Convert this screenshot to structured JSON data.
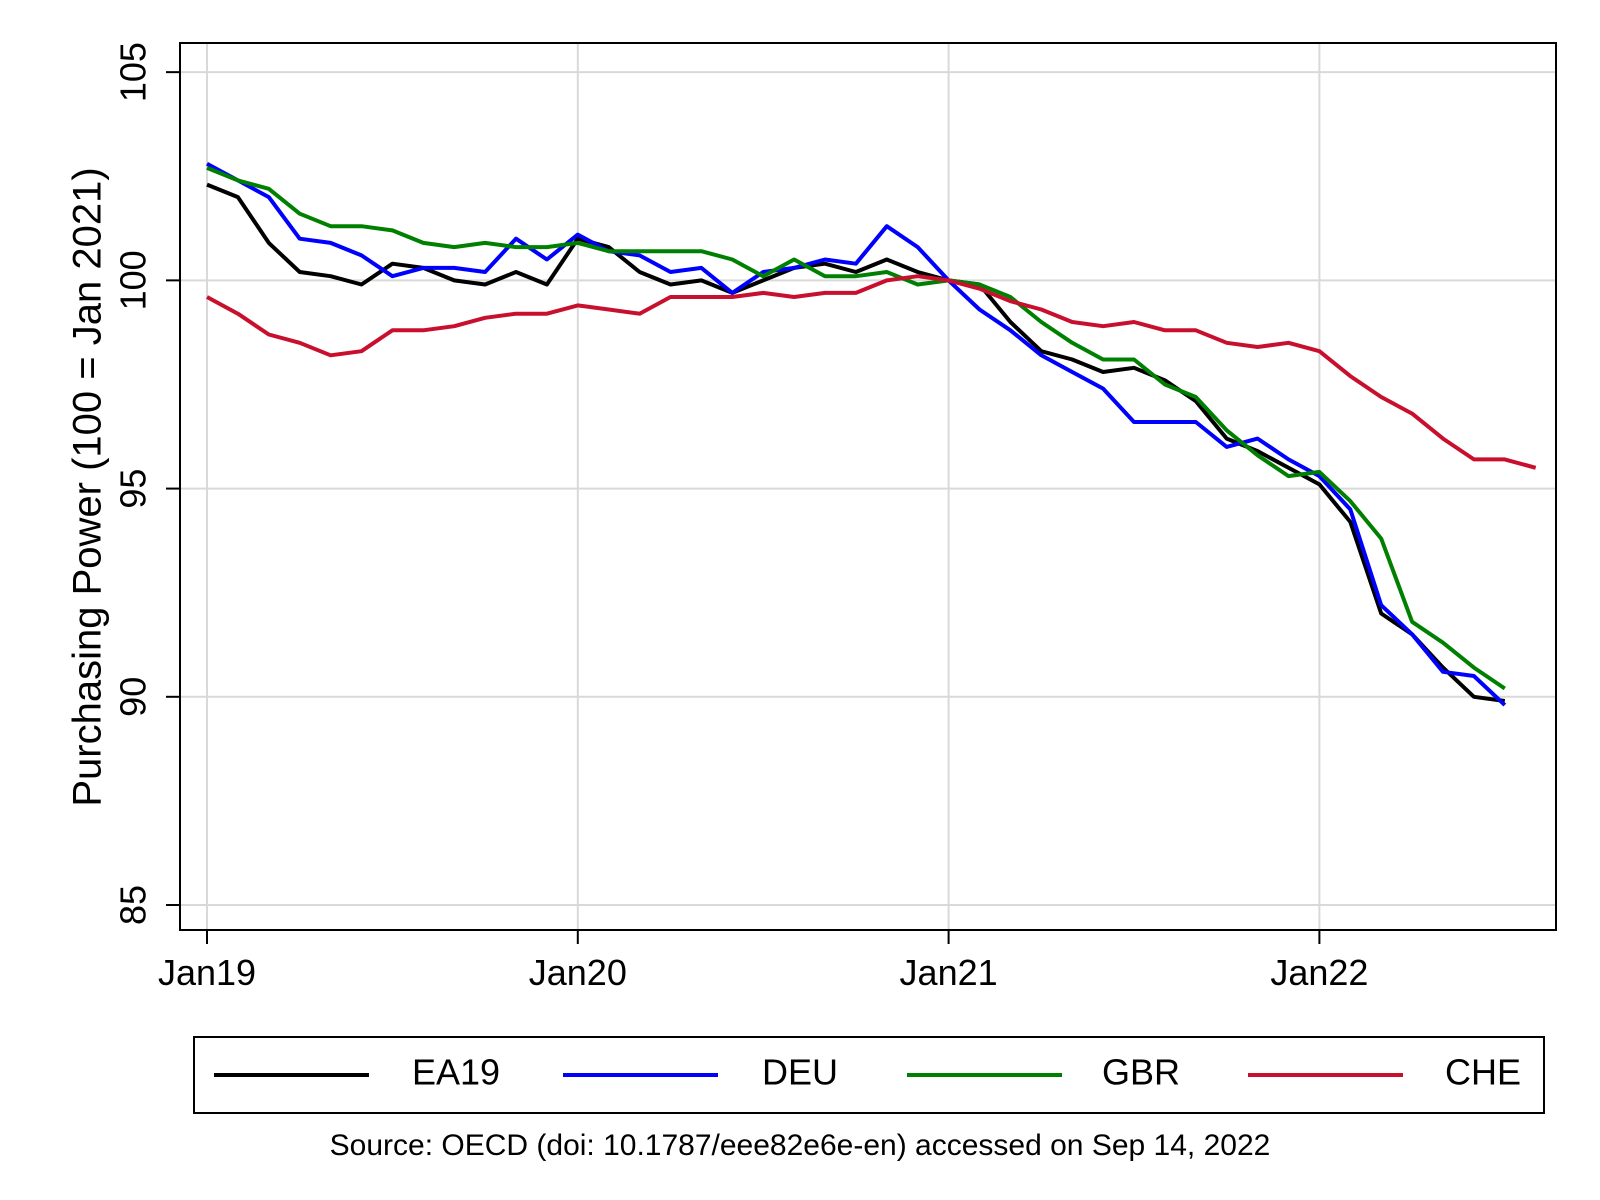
{
  "chart_data": {
    "type": "line",
    "title": "",
    "xlabel": "",
    "ylabel": "Purchasing Power (100 = Jan 2021)",
    "x_start": "Jan19",
    "x_ticks": [
      "Jan19",
      "Jan20",
      "Jan21",
      "Jan22"
    ],
    "y_ticks": [
      "85",
      "90",
      "95",
      "100",
      "105"
    ],
    "ylim": [
      84.4,
      105.7
    ],
    "grid": true,
    "legend_position": "bottom",
    "series": [
      {
        "name": "EA19",
        "color": "#000000",
        "values": [
          102.3,
          102.0,
          100.9,
          100.2,
          100.1,
          99.9,
          100.4,
          100.3,
          100.0,
          99.9,
          100.2,
          99.9,
          101.0,
          100.8,
          100.2,
          99.9,
          100.0,
          99.7,
          100.0,
          100.3,
          100.4,
          100.2,
          100.5,
          100.2,
          100.0,
          99.9,
          99.0,
          98.3,
          98.1,
          97.8,
          97.9,
          97.6,
          97.1,
          96.2,
          95.9,
          95.5,
          95.1,
          94.2,
          92.0,
          91.5,
          90.7,
          90.0,
          89.9
        ],
        "legend_label": "EA19"
      },
      {
        "name": "DEU",
        "color": "#0000ff",
        "values": [
          102.8,
          102.4,
          102.0,
          101.0,
          100.9,
          100.6,
          100.1,
          100.3,
          100.3,
          100.2,
          101.0,
          100.5,
          101.1,
          100.7,
          100.6,
          100.2,
          100.3,
          99.7,
          100.2,
          100.3,
          100.5,
          100.4,
          101.3,
          100.8,
          100.0,
          99.3,
          98.8,
          98.2,
          97.8,
          97.4,
          96.6,
          96.6,
          96.6,
          96.0,
          96.2,
          95.7,
          95.3,
          94.5,
          92.2,
          91.5,
          90.6,
          90.5,
          89.8
        ],
        "legend_label": "DEU"
      },
      {
        "name": "GBR",
        "color": "#008000",
        "values": [
          102.7,
          102.4,
          102.2,
          101.6,
          101.3,
          101.3,
          101.2,
          100.9,
          100.8,
          100.9,
          100.8,
          100.8,
          100.9,
          100.7,
          100.7,
          100.7,
          100.7,
          100.5,
          100.1,
          100.5,
          100.1,
          100.1,
          100.2,
          99.9,
          100.0,
          99.9,
          99.6,
          99.0,
          98.5,
          98.1,
          98.1,
          97.5,
          97.2,
          96.4,
          95.8,
          95.3,
          95.4,
          94.7,
          93.8,
          91.8,
          91.3,
          90.7,
          90.2
        ],
        "legend_label": "GBR"
      },
      {
        "name": "CHE",
        "color": "#c8102e",
        "values": [
          99.6,
          99.2,
          98.7,
          98.5,
          98.2,
          98.3,
          98.8,
          98.8,
          98.9,
          99.1,
          99.2,
          99.2,
          99.4,
          99.3,
          99.2,
          99.6,
          99.6,
          99.6,
          99.7,
          99.6,
          99.7,
          99.7,
          100.0,
          100.1,
          100.0,
          99.8,
          99.5,
          99.3,
          99.0,
          98.9,
          99.0,
          98.8,
          98.8,
          98.5,
          98.4,
          98.5,
          98.3,
          97.7,
          97.2,
          96.8,
          96.2,
          95.7,
          95.7,
          95.5
        ],
        "legend_label": "CHE"
      }
    ]
  },
  "source_note": "Source: OECD (doi: 10.1787/eee82e6e-en) accessed on Sep 14, 2022"
}
